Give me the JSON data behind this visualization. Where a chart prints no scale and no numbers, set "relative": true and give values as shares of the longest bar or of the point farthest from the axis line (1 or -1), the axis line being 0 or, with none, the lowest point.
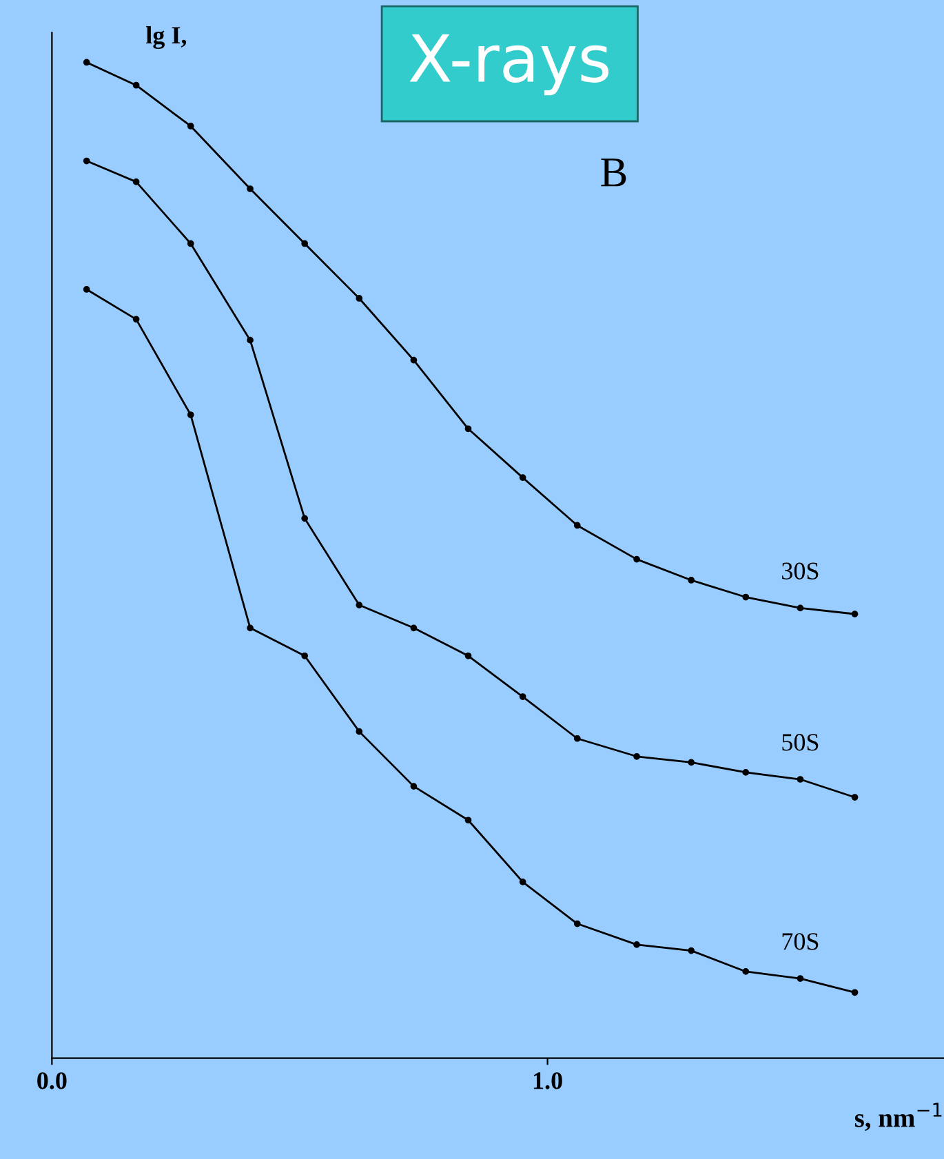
{
  "chart_data": {
    "type": "line",
    "title": "X-rays",
    "xlabel": "s, nm$^{−1}$",
    "ylabel": "lg I,",
    "relative": true,
    "annotations": [
      "B"
    ],
    "x": [
      0.07,
      0.17,
      0.28,
      0.4,
      0.51,
      0.62,
      0.73,
      0.84,
      0.95,
      1.06,
      1.18,
      1.29,
      1.4,
      1.51,
      1.62
    ],
    "series": [
      {
        "name": "30S",
        "color": "#000000",
        "values": [
          1.0,
          0.977,
          0.936,
          0.873,
          0.818,
          0.763,
          0.701,
          0.632,
          0.583,
          0.535,
          0.501,
          0.48,
          0.463,
          0.452,
          0.446
        ]
      },
      {
        "name": "50S",
        "color": "#000000",
        "values": [
          0.901,
          0.88,
          0.818,
          0.721,
          0.542,
          0.455,
          0.432,
          0.404,
          0.363,
          0.321,
          0.303,
          0.297,
          0.287,
          0.28,
          0.262
        ]
      },
      {
        "name": "70S",
        "color": "#000000",
        "values": [
          0.772,
          0.742,
          0.646,
          0.432,
          0.404,
          0.328,
          0.273,
          0.239,
          0.177,
          0.135,
          0.114,
          0.108,
          0.087,
          0.08,
          0.066
        ]
      }
    ],
    "xlim": [
      0.0,
      1.8
    ],
    "xticks": [
      {
        "value": 0.0,
        "label": "0.0"
      },
      {
        "value": 1.0,
        "label": "1.0"
      }
    ],
    "marker": "circle",
    "line_style": "solid",
    "grid": false,
    "legend": false
  }
}
